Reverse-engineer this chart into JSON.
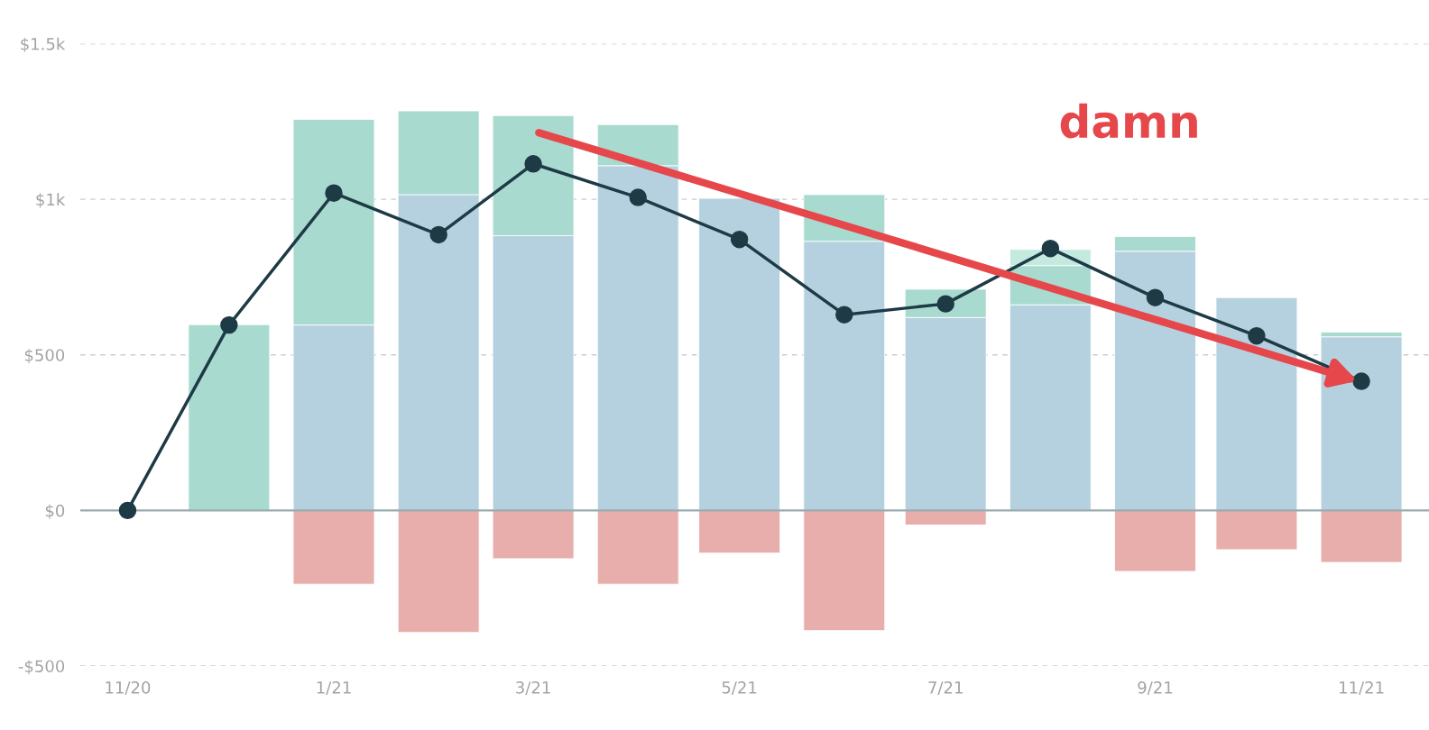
{
  "chart_data": {
    "type": "bar",
    "stacked": true,
    "x": [
      "2020-11",
      "2020-12",
      "2021-01",
      "2021-02",
      "2021-03",
      "2021-04",
      "2021-05",
      "2021-06",
      "2021-07",
      "2021-08",
      "2021-09",
      "2021-10",
      "2021-11"
    ],
    "series": [
      {
        "color": "#b5d1df",
        "values": [
          null,
          null,
          596,
          1015,
          883,
          1108,
          1003,
          865,
          620,
          661,
          833,
          684,
          558
        ]
      },
      {
        "color": "#a8dacf",
        "values": [
          null,
          597,
          661,
          269,
          386,
          132,
          null,
          150,
          91,
          126,
          47,
          null,
          15
        ]
      },
      {
        "color": "#c4eadf",
        "values": [
          null,
          null,
          null,
          null,
          null,
          null,
          null,
          null,
          null,
          52,
          null,
          null,
          null
        ]
      },
      {
        "color": "#e8aeab",
        "values": [
          null,
          null,
          -237,
          -392,
          -155,
          -237,
          -137,
          -386,
          -47,
          null,
          -196,
          -126,
          -167
        ]
      },
      {
        "type": "line",
        "color": "#1d3a45",
        "marker": "circle",
        "line_style": "solid",
        "values": [
          0,
          596,
          1020,
          886,
          1114,
          1006,
          871,
          629,
          664,
          842,
          684,
          561,
          415
        ]
      }
    ],
    "xlim": [
      "2020-10-18",
      "2021-11-21"
    ],
    "xticks": [
      {
        "value": "2020-11",
        "label": "11/20"
      },
      {
        "value": "2021-01",
        "label": "1/21"
      },
      {
        "value": "2021-03",
        "label": "3/21"
      },
      {
        "value": "2021-05",
        "label": "5/21"
      },
      {
        "value": "2021-07",
        "label": "7/21"
      },
      {
        "value": "2021-09",
        "label": "9/21"
      },
      {
        "value": "2021-11",
        "label": "11/21"
      }
    ],
    "ylim": [
      -500,
      1500
    ],
    "yticks": [
      {
        "value": -500,
        "label": "-$500"
      },
      {
        "value": 0,
        "label": "$0"
      },
      {
        "value": 500,
        "label": "$500"
      },
      {
        "value": 1000,
        "label": "$1k"
      },
      {
        "value": 1500,
        "label": "$1.5k"
      }
    ],
    "grid": "y",
    "ref_lines": [
      {
        "axis": "y",
        "value": 0,
        "color": "#9aabb0"
      }
    ],
    "annotations": [
      "damn"
    ]
  }
}
